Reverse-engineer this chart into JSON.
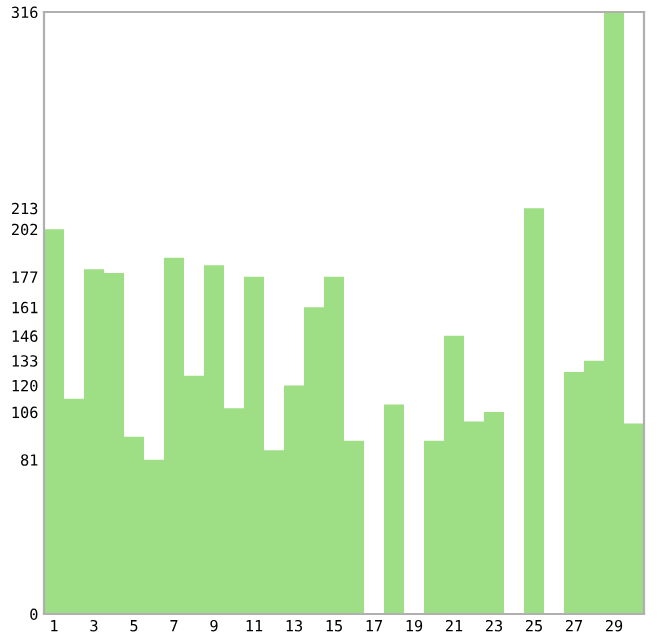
{
  "chart_data": {
    "type": "bar",
    "categories": [
      "1",
      null,
      "3",
      null,
      "5",
      null,
      "7",
      null,
      "9",
      null,
      "11",
      null,
      "13",
      null,
      "15",
      null,
      "17",
      null,
      "19",
      null,
      "21",
      null,
      "23",
      null,
      "25",
      null,
      "27",
      null,
      "29",
      null
    ],
    "values": [
      202,
      113,
      181,
      179,
      93,
      81,
      187,
      125,
      183,
      108,
      177,
      86,
      120,
      161,
      177,
      91,
      0,
      110,
      0,
      91,
      146,
      101,
      106,
      0,
      213,
      0,
      127,
      133,
      316,
      100
    ],
    "color": "#9ede84",
    "ylim": [
      0,
      316
    ],
    "yticks": [
      0,
      81,
      106,
      120,
      133,
      146,
      161,
      177,
      202,
      213,
      316
    ],
    "grid": false
  }
}
